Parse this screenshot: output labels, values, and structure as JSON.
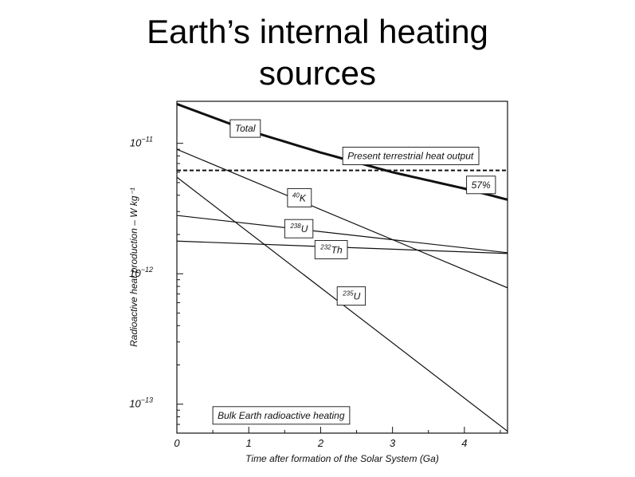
{
  "slide": {
    "title_line1": "Earth’s internal heating",
    "title_line2": "sources"
  },
  "chart_data": {
    "type": "line",
    "scale_y": "log",
    "xlabel": "Time after formation of the Solar System (Ga)",
    "ylabel": "Radioactive heat production – W kg⁻¹",
    "xlim": [
      0,
      4.6
    ],
    "ylim": [
      6e-14,
      2.1e-11
    ],
    "x_ticks": [
      0,
      1,
      2,
      3,
      4
    ],
    "y_ticks": [
      {
        "value": 1e-11,
        "label_base": "10",
        "label_exp": "−11"
      },
      {
        "value": 1e-12,
        "label_base": "10",
        "label_exp": "−12"
      },
      {
        "value": 1e-13,
        "label_base": "10",
        "label_exp": "−13"
      }
    ],
    "grid": false,
    "series": [
      {
        "name": "Total",
        "x": [
          0,
          1,
          2,
          3,
          4,
          4.6
        ],
        "y": [
          2e-11,
          1.25e-11,
          8.5e-12,
          6e-12,
          4.5e-12,
          3.7e-12
        ],
        "stroke_width": 3
      },
      {
        "name": "40K",
        "x": [
          0,
          4.6
        ],
        "y": [
          9e-12,
          7.8e-13
        ],
        "stroke_width": 1.2
      },
      {
        "name": "238U",
        "x": [
          0,
          4.6
        ],
        "y": [
          2.8e-12,
          1.45e-12
        ],
        "stroke_width": 1.2
      },
      {
        "name": "232Th",
        "x": [
          0,
          4.6
        ],
        "y": [
          1.78e-12,
          1.43e-12
        ],
        "stroke_width": 1.2
      },
      {
        "name": "235U",
        "x": [
          0,
          4.6
        ],
        "y": [
          5.5e-12,
          6.2e-14
        ],
        "stroke_width": 1.2
      }
    ],
    "reference_line": {
      "name": "Present terrestrial heat output",
      "y": 6.2e-12,
      "style": "dashed"
    },
    "annotations": [
      {
        "id": "total",
        "text": "Total",
        "x": 0.95,
        "y": 1.3e-11
      },
      {
        "id": "present",
        "text": "Present terrestrial heat output",
        "x": 3.25,
        "y": 8e-12
      },
      {
        "id": "pct",
        "text": "57%",
        "x": 4.23,
        "y": 4.8e-12
      },
      {
        "id": "k40",
        "sup": "40",
        "text": "K",
        "x": 1.7,
        "y": 3.8e-12
      },
      {
        "id": "u238",
        "sup": "238",
        "text": "U",
        "x": 1.7,
        "y": 2.2e-12
      },
      {
        "id": "th232",
        "sup": "232",
        "text": "Th",
        "x": 2.15,
        "y": 1.52e-12
      },
      {
        "id": "u235",
        "sup": "235",
        "text": "U",
        "x": 2.43,
        "y": 6.7e-13
      },
      {
        "id": "bulk",
        "text": "Bulk Earth radioactive heating",
        "x": 1.45,
        "y": 8.2e-14
      }
    ]
  }
}
